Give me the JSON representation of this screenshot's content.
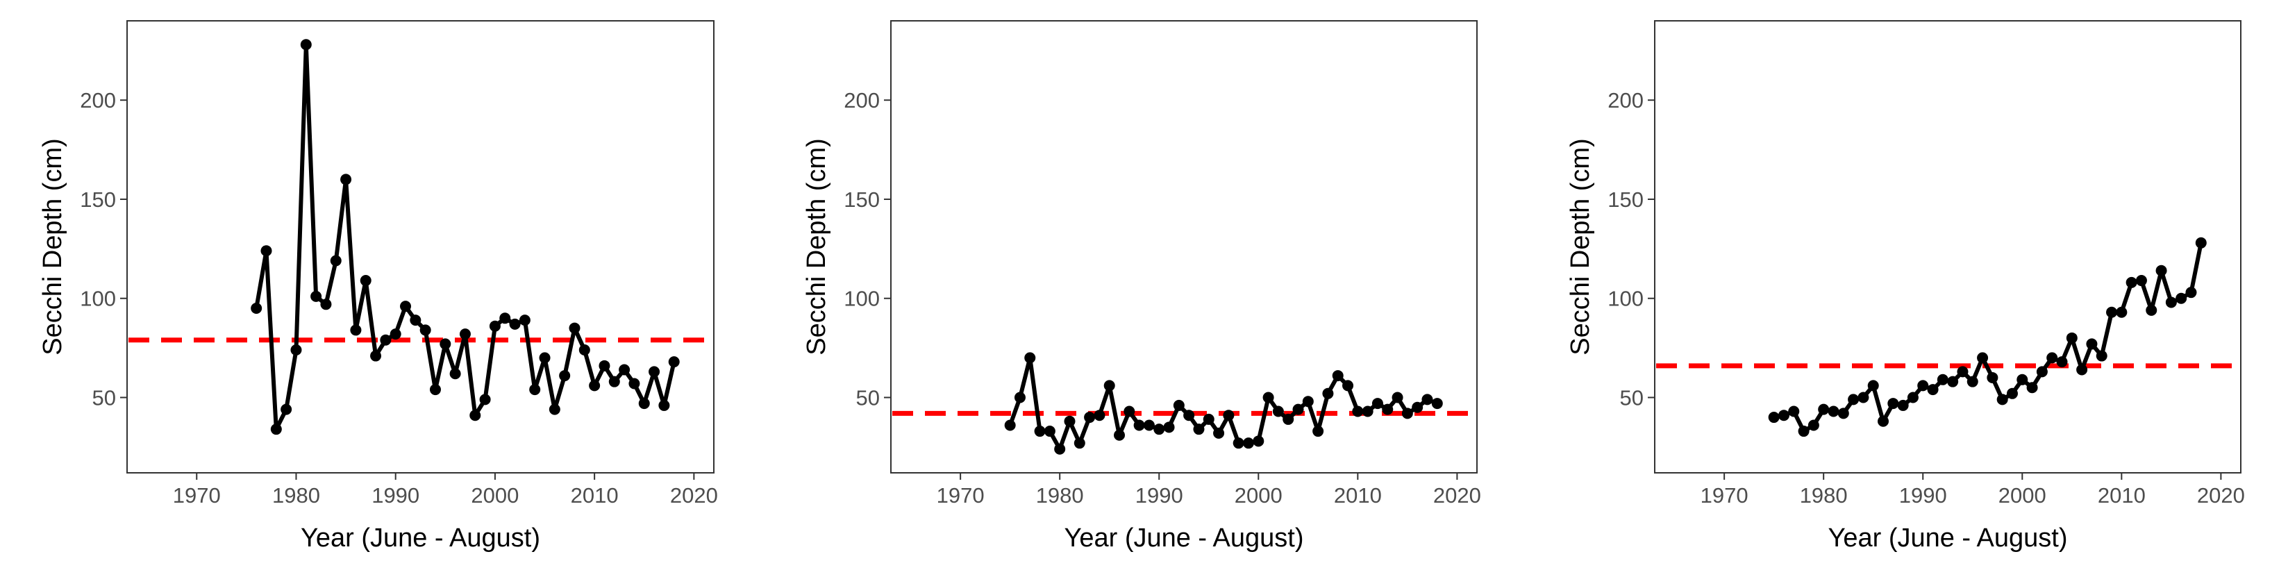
{
  "chart_data": [
    {
      "type": "line",
      "xlabel": "Year (June - August)",
      "ylabel": "Secchi Depth (cm)",
      "xlim": [
        1963,
        2022
      ],
      "ylim": [
        12,
        240
      ],
      "xticks": [
        1970,
        1980,
        1990,
        2000,
        2010,
        2020
      ],
      "yticks": [
        50,
        100,
        150,
        200
      ],
      "reference_line": {
        "y": 79,
        "color": "#ff0000",
        "style": "dashed"
      },
      "series": [
        {
          "color": "#000000",
          "x": [
            1976,
            1977,
            1978,
            1979,
            1980,
            1981,
            1982,
            1983,
            1984,
            1985,
            1986,
            1987,
            1988,
            1989,
            1990,
            1991,
            1992,
            1993,
            1994,
            1995,
            1996,
            1997,
            1998,
            1999,
            2000,
            2001,
            2002,
            2003,
            2004,
            2005,
            2006,
            2007,
            2008,
            2009,
            2010,
            2011,
            2012,
            2013,
            2014,
            2015,
            2016,
            2017,
            2018
          ],
          "y": [
            95,
            124,
            34,
            44,
            74,
            228,
            101,
            97,
            119,
            160,
            84,
            109,
            71,
            79,
            82,
            96,
            89,
            84,
            54,
            77,
            62,
            82,
            41,
            49,
            86,
            90,
            87,
            89,
            54,
            70,
            44,
            61,
            85,
            74,
            56,
            66,
            58,
            64,
            57,
            47,
            63,
            46,
            68
          ]
        }
      ]
    },
    {
      "type": "line",
      "xlabel": "Year (June - August)",
      "ylabel": "Secchi Depth (cm)",
      "xlim": [
        1963,
        2022
      ],
      "ylim": [
        12,
        240
      ],
      "xticks": [
        1970,
        1980,
        1990,
        2000,
        2010,
        2020
      ],
      "yticks": [
        50,
        100,
        150,
        200
      ],
      "reference_line": {
        "y": 42,
        "color": "#ff0000",
        "style": "dashed"
      },
      "series": [
        {
          "color": "#000000",
          "x": [
            1975,
            1976,
            1977,
            1978,
            1979,
            1980,
            1981,
            1982,
            1983,
            1984,
            1985,
            1986,
            1987,
            1988,
            1989,
            1990,
            1991,
            1992,
            1993,
            1994,
            1995,
            1996,
            1997,
            1998,
            1999,
            2000,
            2001,
            2002,
            2003,
            2004,
            2005,
            2006,
            2007,
            2008,
            2009,
            2010,
            2011,
            2012,
            2013,
            2014,
            2015,
            2016,
            2017,
            2018
          ],
          "y": [
            36,
            50,
            70,
            33,
            33,
            24,
            38,
            27,
            40,
            41,
            56,
            31,
            43,
            36,
            36,
            34,
            35,
            46,
            41,
            34,
            39,
            32,
            41,
            27,
            27,
            28,
            50,
            43,
            39,
            44,
            48,
            33,
            52,
            61,
            56,
            43,
            43,
            47,
            44,
            50,
            42,
            45,
            49,
            47
          ]
        }
      ]
    },
    {
      "type": "line",
      "xlabel": "Year (June - August)",
      "ylabel": "Secchi Depth (cm)",
      "xlim": [
        1963,
        2022
      ],
      "ylim": [
        12,
        240
      ],
      "xticks": [
        1970,
        1980,
        1990,
        2000,
        2010,
        2020
      ],
      "yticks": [
        50,
        100,
        150,
        200
      ],
      "reference_line": {
        "y": 66,
        "color": "#ff0000",
        "style": "dashed"
      },
      "series": [
        {
          "color": "#000000",
          "x": [
            1975,
            1976,
            1977,
            1978,
            1979,
            1980,
            1981,
            1982,
            1983,
            1984,
            1985,
            1986,
            1987,
            1988,
            1989,
            1990,
            1991,
            1992,
            1993,
            1994,
            1995,
            1996,
            1997,
            1998,
            1999,
            2000,
            2001,
            2002,
            2003,
            2004,
            2005,
            2006,
            2007,
            2008,
            2009,
            2010,
            2011,
            2012,
            2013,
            2014,
            2015,
            2016,
            2017,
            2018
          ],
          "y": [
            40,
            41,
            43,
            33,
            36,
            44,
            43,
            42,
            49,
            50,
            56,
            38,
            47,
            46,
            50,
            56,
            54,
            59,
            58,
            63,
            58,
            70,
            60,
            49,
            52,
            59,
            55,
            63,
            70,
            68,
            80,
            64,
            77,
            71,
            93,
            93,
            108,
            109,
            94,
            114,
            98,
            100,
            103,
            128
          ]
        }
      ]
    }
  ]
}
